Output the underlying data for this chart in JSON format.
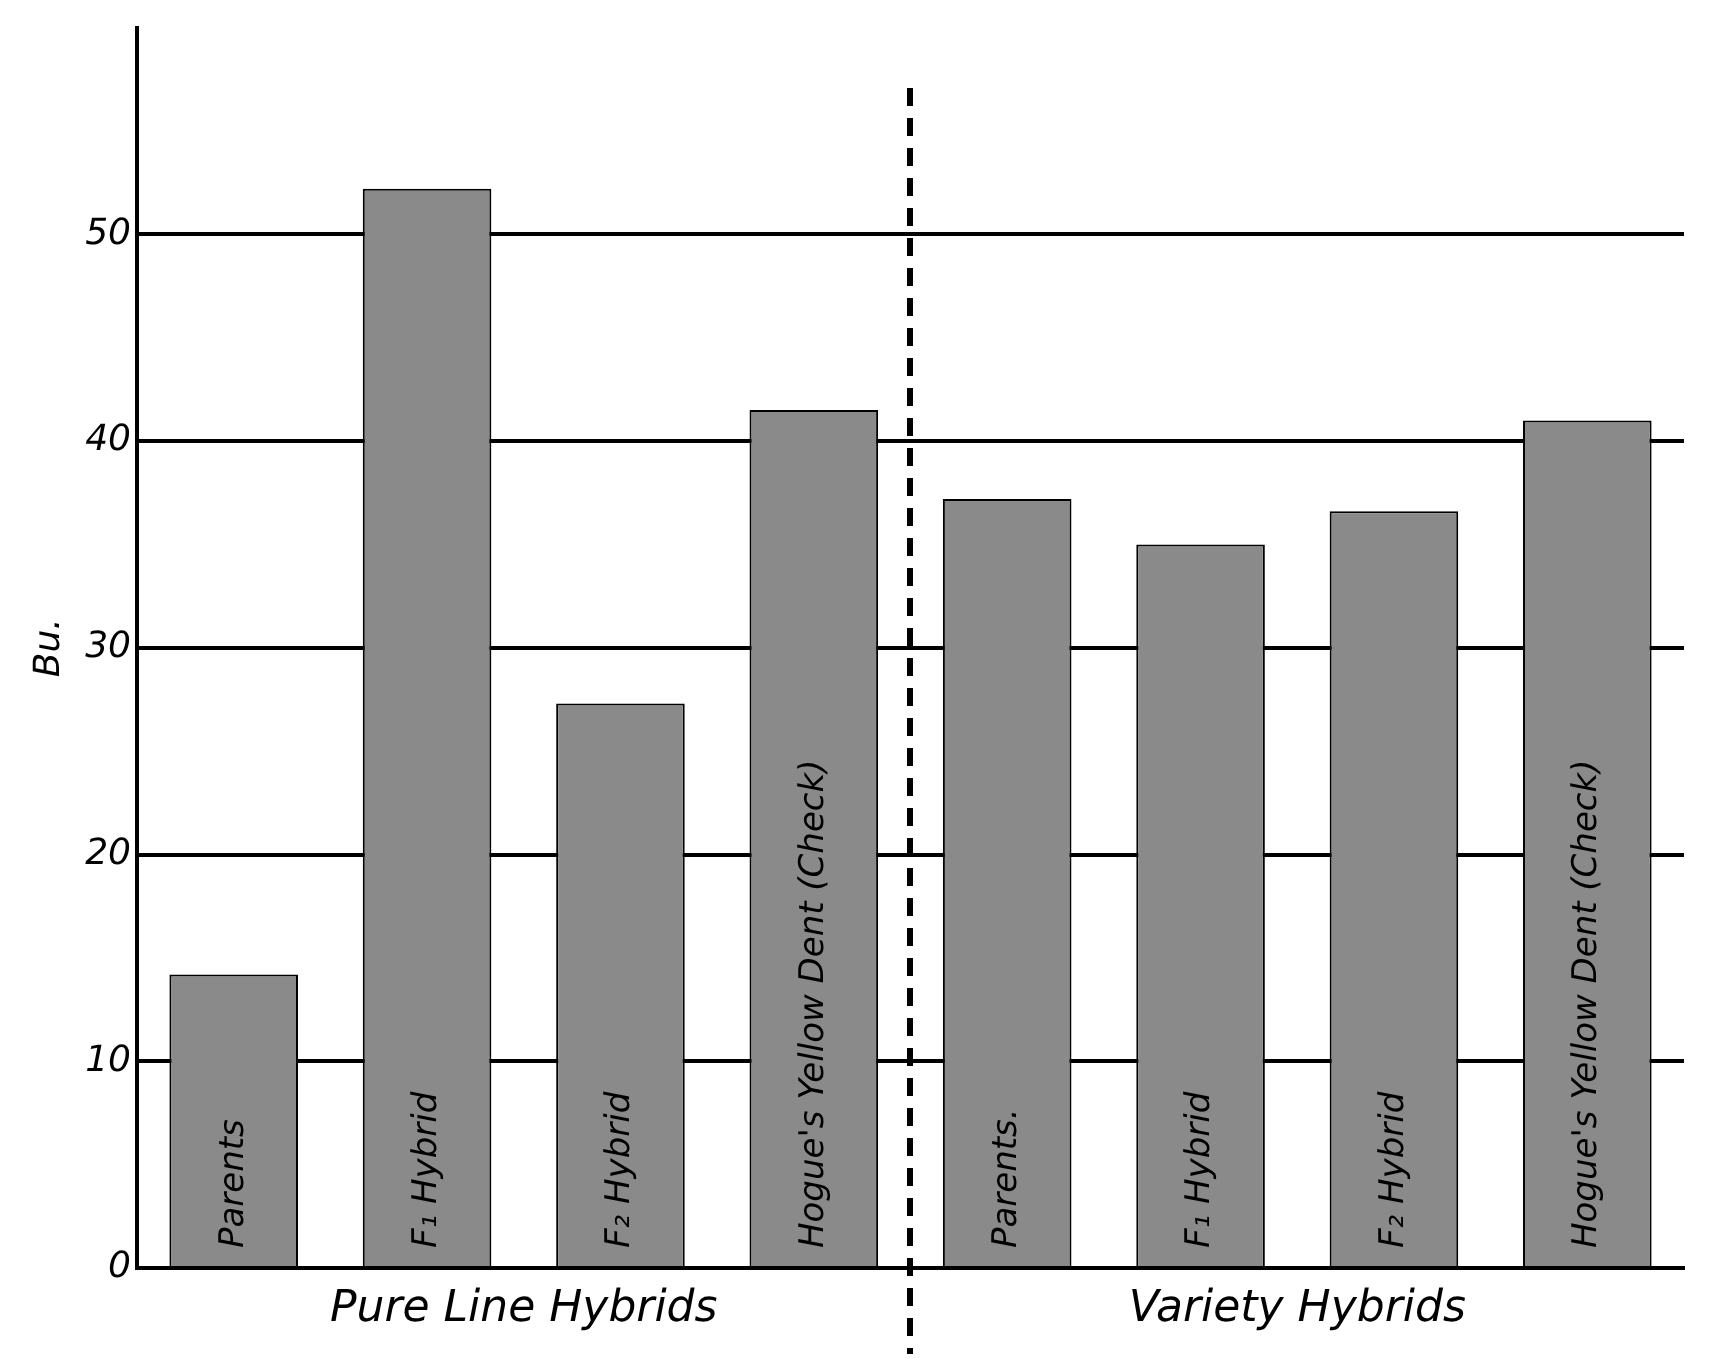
{
  "chart_data": {
    "type": "bar",
    "ylabel": "Bu.",
    "categories": [
      "Parents",
      "F₁ Hybrid",
      "F₂ Hybrid",
      "Hogue's Yellow Dent (Check)",
      "Parents.",
      "F₁ Hybrid",
      "F₂ Hybrid",
      "Hogue's Yellow Dent (Check)"
    ],
    "values": [
      14.2,
      52.2,
      27.3,
      41.5,
      37.2,
      35.0,
      36.6,
      41.0
    ],
    "color": "#8a8a8a",
    "ylim": [
      0,
      60
    ],
    "yticks": [
      0,
      10,
      20,
      30,
      40,
      50
    ],
    "grid": "y",
    "annotations": [
      "Pure Line Hybrids",
      "Variety Hybrids"
    ]
  }
}
